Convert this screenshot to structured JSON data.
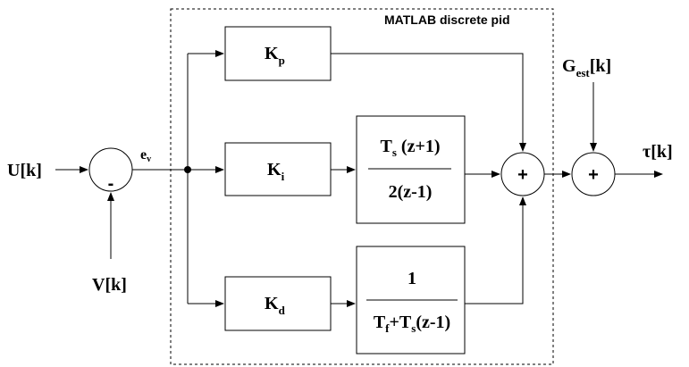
{
  "region": {
    "title": "MATLAB discrete pid"
  },
  "signals": {
    "input_U": {
      "main": "U",
      "bracket": "[k]"
    },
    "input_V": {
      "main": "V",
      "bracket": "[k]"
    },
    "error": {
      "main": "e",
      "sub": "v"
    },
    "g_est": {
      "main": "G",
      "sub": "est",
      "bracket": "[k]"
    },
    "output": {
      "main": "τ",
      "bracket": "[k]"
    }
  },
  "blocks": {
    "kp": {
      "main": "K",
      "sub": "p"
    },
    "ki": {
      "main": "K",
      "sub": "i"
    },
    "kd": {
      "main": "K",
      "sub": "d"
    }
  },
  "transfer": {
    "integral": {
      "num_main": "T",
      "num_sub": "s",
      "num_rest": " (z+1)",
      "den": "2(z-1)"
    },
    "derivative": {
      "num": "1",
      "den_t1": "T",
      "den_sub1": "f",
      "den_plus": "+T",
      "den_sub2": "s",
      "den_rest": "(z-1)"
    }
  },
  "junctions": {
    "error_sum_sign": "-",
    "pid_sum_sign": "+",
    "out_sum_sign": "+"
  }
}
